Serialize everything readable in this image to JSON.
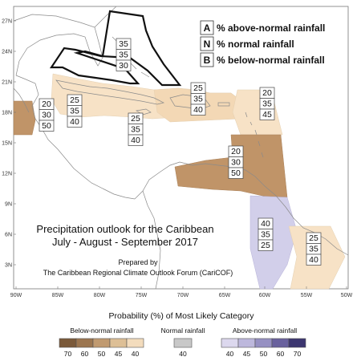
{
  "map": {
    "title_line1": "Precipitation outlook for the Caribbean",
    "title_line2": "July - August - September 2017",
    "credit_line1": "Prepared by",
    "credit_line2": "The Caribbean Regional Climate Outlook Forum (CariCOF)",
    "lat_labels": [
      "27N",
      "24N",
      "21N",
      "18N",
      "15N",
      "12N",
      "9N",
      "6N",
      "3N"
    ],
    "lon_labels": [
      "90W",
      "85W",
      "80W",
      "75W",
      "70W",
      "65W",
      "60W",
      "55W",
      "50W"
    ]
  },
  "legend_box": {
    "rows": [
      {
        "key": "A",
        "text": "% above-normal rainfall"
      },
      {
        "key": "N",
        "text": "% normal rainfall"
      },
      {
        "key": "B",
        "text": "% below-normal rainfall"
      }
    ]
  },
  "probability_boxes": [
    {
      "id": "bahamas",
      "values": [
        "35",
        "35",
        "30"
      ]
    },
    {
      "id": "belize",
      "values": [
        "20",
        "30",
        "50"
      ]
    },
    {
      "id": "cuba",
      "values": [
        "25",
        "35",
        "40"
      ]
    },
    {
      "id": "jamaica",
      "values": [
        "25",
        "35",
        "40"
      ]
    },
    {
      "id": "hispaniola",
      "values": [
        "25",
        "35",
        "40"
      ]
    },
    {
      "id": "leewards",
      "values": [
        "20",
        "35",
        "45"
      ]
    },
    {
      "id": "abc-islands",
      "values": [
        "20",
        "30",
        "50"
      ]
    },
    {
      "id": "guyana",
      "values": [
        "40",
        "35",
        "25"
      ]
    },
    {
      "id": "suriname",
      "values": [
        "25",
        "35",
        "40"
      ]
    }
  ],
  "colorbar": {
    "title": "Probability (%) of Most Likely Category",
    "below": {
      "label": "Below-normal rainfall",
      "ticks": [
        "70",
        "60",
        "50",
        "45",
        "40"
      ],
      "colors": [
        "#7b5a3a",
        "#9c7650",
        "#c09a70",
        "#ddbf96",
        "#f3dcbd"
      ]
    },
    "normal": {
      "label": "Normal rainfall",
      "ticks": [
        "40"
      ],
      "colors": [
        "#c8c8c8"
      ]
    },
    "above": {
      "label": "Above-normal rainfall",
      "ticks": [
        "40",
        "45",
        "50",
        "60",
        "70"
      ],
      "colors": [
        "#dcd8ee",
        "#bdb8dc",
        "#9690c2",
        "#6a629e",
        "#3c3670"
      ]
    }
  },
  "colors": {
    "below_40": "#f7e2c6",
    "below_45": "#f3d8b5",
    "below_50": "#c09468",
    "above_40": "#d2cfea",
    "land": "#888888",
    "frame": "#777777"
  }
}
